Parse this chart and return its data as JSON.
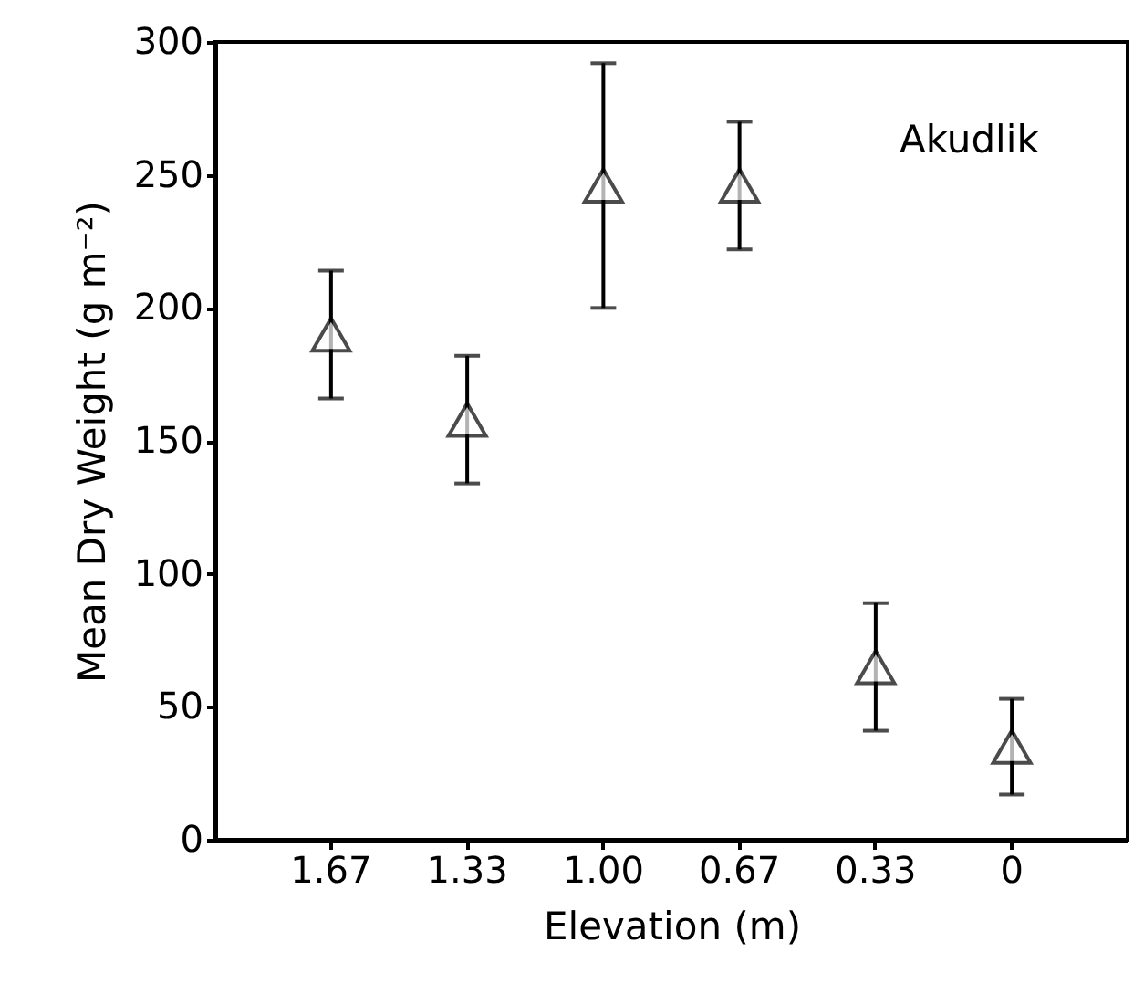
{
  "chart_data": {
    "type": "scatter",
    "xlabel": "Elevation (m)",
    "ylabel": "Mean Dry Weight (g m⁻²)",
    "categories": [
      "1.67",
      "1.33",
      "1.00",
      "0.67",
      "0.33",
      "0"
    ],
    "series": [
      {
        "color": "#000000",
        "values": [
          190,
          158,
          246,
          246,
          65,
          35
        ],
        "errors": [
          24,
          24,
          46,
          24,
          24,
          18
        ]
      }
    ],
    "ylim": [
      0,
      300
    ],
    "yticks": [
      0,
      50,
      100,
      150,
      200,
      250,
      300
    ],
    "marker": "triangle",
    "annotations": [
      "Akudlik"
    ],
    "grid": false,
    "legend": false
  }
}
